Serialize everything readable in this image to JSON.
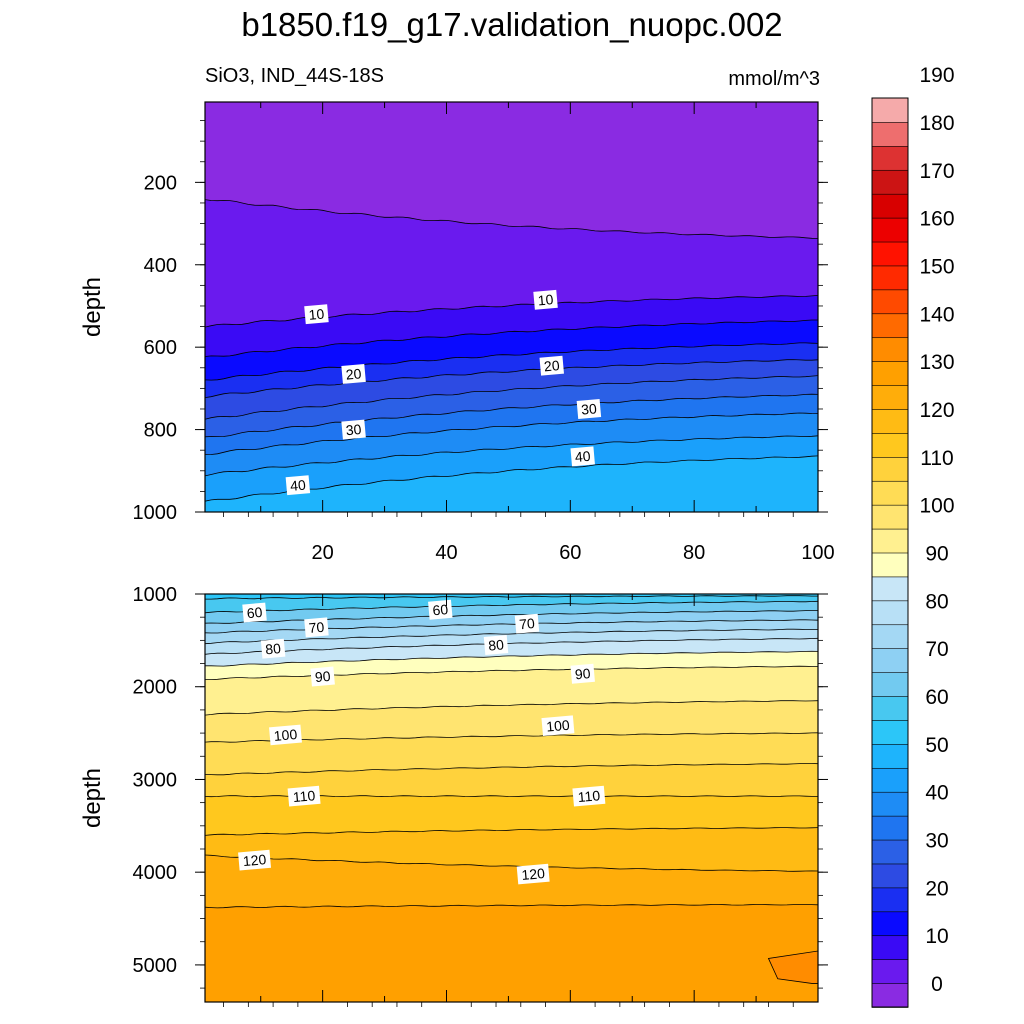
{
  "title": "b1850.f19_g17.validation_nuopc.002",
  "subtitle_left": "SiO3, IND_44S-18S",
  "subtitle_right": "mmol/m^3",
  "chart_data": [
    {
      "type": "contour",
      "panel": "upper",
      "ylabel": "depth",
      "xlim": [
        1,
        100
      ],
      "ylim": [
        1000,
        5
      ],
      "y_reversed": true,
      "xticks": [
        20,
        40,
        60,
        80,
        100
      ],
      "yticks": [
        200,
        400,
        600,
        800,
        1000
      ],
      "levels": [
        {
          "level": 0,
          "y_left": 240,
          "y_right": 335
        },
        {
          "level": 5,
          "y_left": 550,
          "y_right": 475
        },
        {
          "level": 10,
          "y_left": 625,
          "y_right": 535
        },
        {
          "level": 15,
          "y_left": 680,
          "y_right": 590
        },
        {
          "level": 20,
          "y_left": 720,
          "y_right": 630
        },
        {
          "level": 25,
          "y_left": 775,
          "y_right": 670
        },
        {
          "level": 30,
          "y_left": 820,
          "y_right": 715
        },
        {
          "level": 35,
          "y_left": 860,
          "y_right": 760
        },
        {
          "level": 40,
          "y_left": 910,
          "y_right": 815
        },
        {
          "level": 45,
          "y_left": 975,
          "y_right": 865
        }
      ],
      "contour_labels": [
        {
          "text": "10",
          "x": 19,
          "y": 520
        },
        {
          "text": "10",
          "x": 56,
          "y": 485
        },
        {
          "text": "20",
          "x": 25,
          "y": 665
        },
        {
          "text": "20",
          "x": 57,
          "y": 645
        },
        {
          "text": "30",
          "x": 25,
          "y": 800
        },
        {
          "text": "30",
          "x": 63,
          "y": 750
        },
        {
          "text": "40",
          "x": 16,
          "y": 935
        },
        {
          "text": "40",
          "x": 62,
          "y": 865
        }
      ]
    },
    {
      "type": "contour",
      "panel": "lower",
      "ylabel": "depth",
      "xlim": [
        1,
        100
      ],
      "ylim": [
        5400,
        1000
      ],
      "y_reversed": true,
      "xticks": [
        20,
        40,
        60,
        80,
        100
      ],
      "yticks": [
        1000,
        2000,
        3000,
        4000,
        5000
      ],
      "levels": [
        {
          "level": 55,
          "y_left": 1050,
          "y_right": 1020
        },
        {
          "level": 60,
          "y_left": 1200,
          "y_right": 1080
        },
        {
          "level": 65,
          "y_left": 1320,
          "y_right": 1180
        },
        {
          "level": 70,
          "y_left": 1420,
          "y_right": 1280
        },
        {
          "level": 75,
          "y_left": 1530,
          "y_right": 1380
        },
        {
          "level": 80,
          "y_left": 1650,
          "y_right": 1480
        },
        {
          "level": 85,
          "y_left": 1780,
          "y_right": 1620
        },
        {
          "level": 90,
          "y_left": 1920,
          "y_right": 1780
        },
        {
          "level": 95,
          "y_left": 2300,
          "y_right": 2150
        },
        {
          "level": 100,
          "y_left": 2600,
          "y_right": 2500
        },
        {
          "level": 105,
          "y_left": 2950,
          "y_right": 2830
        },
        {
          "level": 110,
          "y_left": 3180,
          "y_right": 3180
        },
        {
          "level": 115,
          "y_left": 3600,
          "y_right": 3520
        },
        {
          "level": 120,
          "y_left": 3820,
          "y_right": 3990
        },
        {
          "level": 125,
          "y_left": 4380,
          "y_right": 4350
        }
      ],
      "extra_region": {
        "level": 130,
        "x_range": [
          92,
          100
        ],
        "y_range": [
          4850,
          5200
        ]
      },
      "contour_labels": [
        {
          "text": "60",
          "x": 9,
          "y": 1200
        },
        {
          "text": "60",
          "x": 39,
          "y": 1170
        },
        {
          "text": "70",
          "x": 19,
          "y": 1360
        },
        {
          "text": "70",
          "x": 53,
          "y": 1320
        },
        {
          "text": "80",
          "x": 12,
          "y": 1590
        },
        {
          "text": "80",
          "x": 48,
          "y": 1550
        },
        {
          "text": "90",
          "x": 20,
          "y": 1890
        },
        {
          "text": "90",
          "x": 62,
          "y": 1860
        },
        {
          "text": "100",
          "x": 14,
          "y": 2520
        },
        {
          "text": "100",
          "x": 58,
          "y": 2420
        },
        {
          "text": "110",
          "x": 17,
          "y": 3180
        },
        {
          "text": "110",
          "x": 63,
          "y": 3180
        },
        {
          "text": "120",
          "x": 9,
          "y": 3870
        },
        {
          "text": "120",
          "x": 54,
          "y": 4020
        }
      ]
    }
  ],
  "colorbar": {
    "labels": [
      "0",
      "10",
      "20",
      "30",
      "40",
      "50",
      "60",
      "70",
      "80",
      "90",
      "100",
      "110",
      "120",
      "130",
      "140",
      "150",
      "160",
      "170",
      "180",
      "190"
    ],
    "colors": [
      "#8a2be2",
      "#6a1aee",
      "#3a0af5",
      "#0a0aff",
      "#1a2ff2",
      "#2d4be3",
      "#2b60e6",
      "#1f75f0",
      "#1e8cf5",
      "#1aa0fb",
      "#1eb4fc",
      "#2cc6f8",
      "#48c8f0",
      "#72caf0",
      "#8ed0f3",
      "#a4d8f4",
      "#b8e0f6",
      "#c8e6f7",
      "#ffffbe",
      "#fff090",
      "#ffe470",
      "#ffdc55",
      "#ffd23c",
      "#ffc81e",
      "#ffbb14",
      "#ffad0a",
      "#ffa000",
      "#ff8c00",
      "#ff6a00",
      "#ff4a00",
      "#ff2a00",
      "#ff1200",
      "#ec0000",
      "#d80000",
      "#cc1414",
      "#dd3232",
      "#ee6e6e",
      "#f5aaaa"
    ]
  }
}
